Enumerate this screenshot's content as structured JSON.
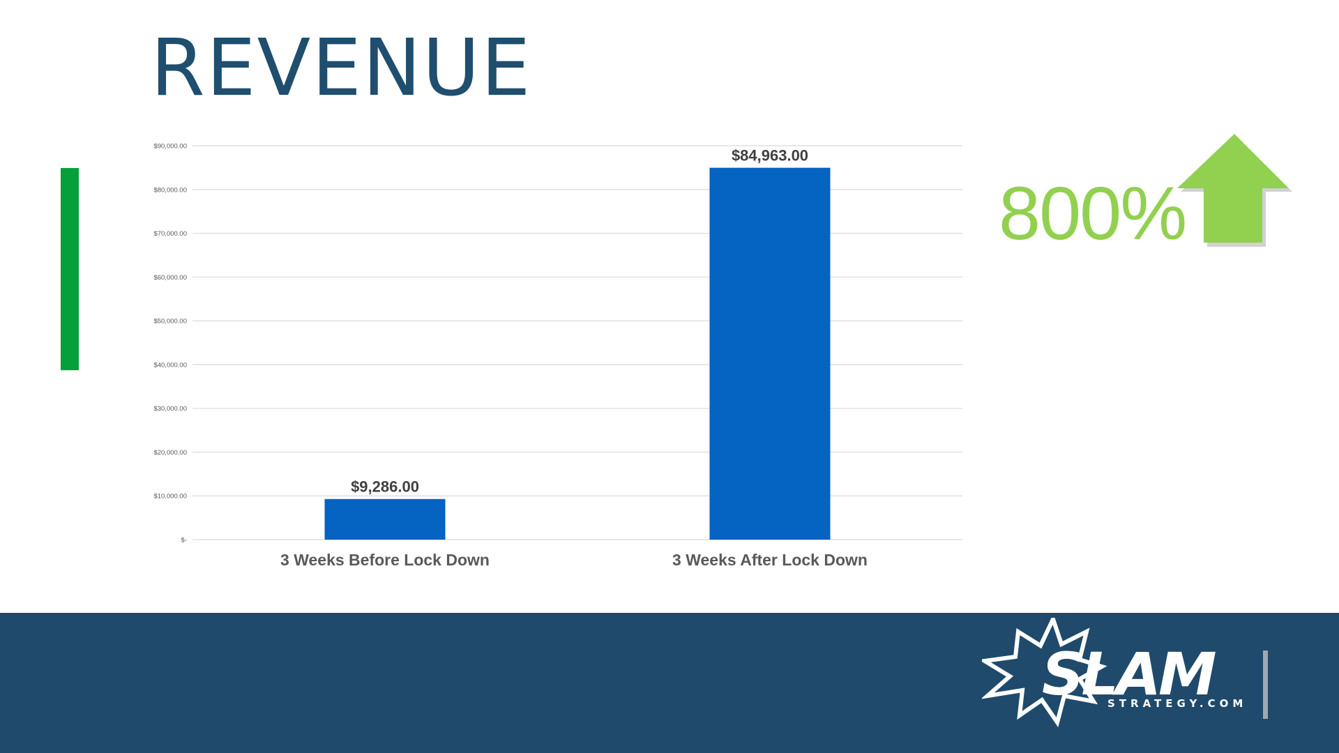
{
  "slide": {
    "title": "REVENUE",
    "growth": "800%"
  },
  "colors": {
    "title": "#1f4e6e",
    "bar": "#0563c1",
    "accent_bar": "#05a03a",
    "growth": "#92d050",
    "footer": "#1f4a6b",
    "logo": "#ffffff"
  },
  "icons": {
    "growth_arrow": "arrow-up-icon",
    "logo": "slam-starburst-logo"
  },
  "logo": {
    "wordmark": "SLAM",
    "tagline": "STRATEGY.COM"
  },
  "chart_data": {
    "type": "bar",
    "title": "",
    "xlabel": "",
    "ylabel": "",
    "categories": [
      "3 Weeks Before Lock Down",
      "3 Weeks After Lock Down"
    ],
    "values": [
      9286,
      84963
    ],
    "data_labels": [
      "$9,286.00",
      "$84,963.00"
    ],
    "ylim": [
      0,
      90000
    ],
    "yticks": [
      0,
      10000,
      20000,
      30000,
      40000,
      50000,
      60000,
      70000,
      80000,
      90000
    ],
    "ytick_labels": [
      "$-",
      "$10,000.00",
      "$20,000.00",
      "$30,000.00",
      "$40,000.00",
      "$50,000.00",
      "$60,000.00",
      "$70,000.00",
      "$80,000.00",
      "$90,000.00"
    ],
    "grid": true,
    "legend": "none"
  }
}
